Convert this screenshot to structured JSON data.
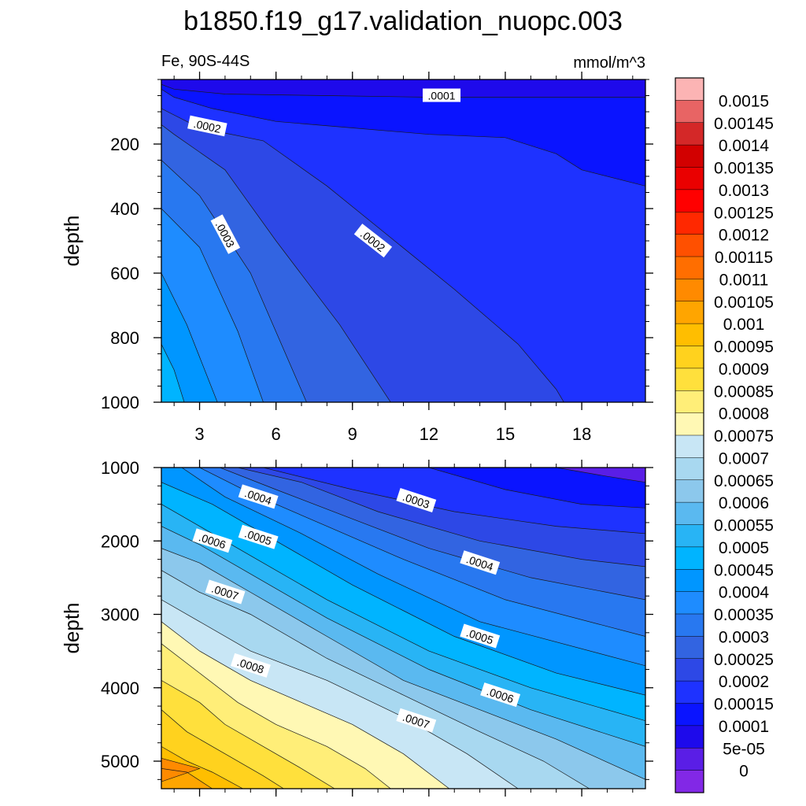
{
  "chart_data": [
    {
      "type": "heatmap",
      "title": "b1850.f19_g17.validation_nuopc.003",
      "panel": "upper",
      "left_string": "Fe, 90S-44S",
      "right_string": "mmol/m^3",
      "xlabel": "",
      "ylabel": "depth",
      "x_ticks": [
        "3",
        "6",
        "9",
        "12",
        "15",
        "18"
      ],
      "y_ticks": [
        "200",
        "400",
        "600",
        "800",
        "1000"
      ],
      "xlim": [
        1.5,
        20.5
      ],
      "ylim": [
        1000,
        0
      ],
      "contour_labels": [
        {
          "text": ".0001",
          "x": 12.5,
          "y": 50
        },
        {
          "text": ".0002",
          "x": 3.3,
          "y": 145
        },
        {
          "text": ".0003",
          "x": 4.0,
          "y": 480
        },
        {
          "text": ".0002",
          "x": 9.8,
          "y": 500
        }
      ],
      "contours": [
        {
          "level": 0.0001,
          "x": [
            1.5,
            2.0,
            4.0,
            8.0,
            12.0,
            16.0,
            20.5
          ],
          "y": [
            15,
            30,
            45,
            50,
            55,
            55,
            55
          ]
        },
        {
          "level": 0.00015,
          "x": [
            1.5,
            2.0,
            3.5,
            6.0,
            9.0,
            12.0,
            15.0,
            17.0,
            18.0,
            20.5
          ],
          "y": [
            30,
            55,
            90,
            130,
            150,
            170,
            180,
            230,
            280,
            330
          ]
        },
        {
          "level": 0.0002,
          "x": [
            1.5,
            3.0,
            5.5,
            8.0,
            10.5,
            13.0,
            15.5,
            17.0,
            17.3
          ],
          "y": [
            90,
            150,
            190,
            330,
            490,
            650,
            820,
            960,
            1000
          ]
        },
        {
          "level": 0.00025,
          "x": [
            1.5,
            2.0,
            4.0,
            6.0,
            8.5,
            10.5
          ],
          "y": [
            140,
            170,
            280,
            500,
            760,
            1000
          ]
        },
        {
          "level": 0.0003,
          "x": [
            1.5,
            3.0,
            5.0,
            7.2
          ],
          "y": [
            250,
            360,
            600,
            1000
          ]
        },
        {
          "level": 0.00035,
          "x": [
            1.5,
            3.0,
            4.5,
            5.5
          ],
          "y": [
            400,
            520,
            780,
            1000
          ]
        },
        {
          "level": 0.0004,
          "x": [
            1.5,
            2.5,
            3.7
          ],
          "y": [
            600,
            760,
            1000
          ]
        },
        {
          "level": 0.00045,
          "x": [
            1.5,
            2.0,
            2.4
          ],
          "y": [
            820,
            900,
            1000
          ]
        }
      ]
    },
    {
      "type": "heatmap",
      "panel": "lower",
      "xlabel": "",
      "ylabel": "depth",
      "y_ticks": [
        "1000",
        "2000",
        "3000",
        "4000",
        "5000"
      ],
      "xlim": [
        1.5,
        20.5
      ],
      "ylim": [
        5375,
        1000
      ],
      "contour_labels": [
        {
          "text": ".0004",
          "x": 5.3,
          "y": 1400
        },
        {
          "text": ".0003",
          "x": 11.5,
          "y": 1450
        },
        {
          "text": ".0006",
          "x": 3.5,
          "y": 2000
        },
        {
          "text": ".0005",
          "x": 5.3,
          "y": 1950
        },
        {
          "text": ".0004",
          "x": 14.0,
          "y": 2300
        },
        {
          "text": ".0007",
          "x": 4.0,
          "y": 2700
        },
        {
          "text": ".0005",
          "x": 14.0,
          "y": 3300
        },
        {
          "text": ".0008",
          "x": 5.0,
          "y": 3700
        },
        {
          "text": ".0006",
          "x": 14.8,
          "y": 4100
        },
        {
          "text": ".0007",
          "x": 11.5,
          "y": 4450
        }
      ],
      "contours": [
        {
          "level": 0.0001,
          "x": [
            17.0,
            19.0,
            20.5
          ],
          "y": [
            1000,
            1120,
            1200
          ]
        },
        {
          "level": 0.00015,
          "x": [
            12.0,
            15.0,
            18.0,
            20.5
          ],
          "y": [
            1000,
            1300,
            1500,
            1550
          ]
        },
        {
          "level": 0.0002,
          "x": [
            5.5,
            9.0,
            13.0,
            17.0,
            20.5
          ],
          "y": [
            1000,
            1300,
            1600,
            1800,
            1900
          ]
        },
        {
          "level": 0.00025,
          "x": [
            4.5,
            7.0,
            10.0,
            14.0,
            18.0,
            20.5
          ],
          "y": [
            1000,
            1200,
            1600,
            2000,
            2250,
            2350
          ]
        },
        {
          "level": 0.0003,
          "x": [
            3.8,
            6.0,
            9.0,
            12.0,
            16.0,
            20.5
          ],
          "y": [
            1000,
            1300,
            1700,
            2100,
            2500,
            2800
          ]
        },
        {
          "level": 0.00035,
          "x": [
            3.0,
            5.0,
            8.0,
            11.0,
            15.0,
            20.5
          ],
          "y": [
            1000,
            1350,
            1800,
            2250,
            2800,
            3300
          ]
        },
        {
          "level": 0.0004,
          "x": [
            2.3,
            4.0,
            7.0,
            10.0,
            14.0,
            20.5
          ],
          "y": [
            1000,
            1400,
            1900,
            2450,
            3100,
            3700
          ]
        },
        {
          "level": 0.00045,
          "x": [
            1.5,
            3.5,
            6.0,
            9.0,
            13.0,
            17.0,
            20.5
          ],
          "y": [
            1200,
            1500,
            2000,
            2600,
            3300,
            3800,
            4100
          ]
        },
        {
          "level": 0.0005,
          "x": [
            1.5,
            3.0,
            5.0,
            8.0,
            12.0,
            16.0,
            20.5
          ],
          "y": [
            1500,
            1800,
            2200,
            2800,
            3500,
            4000,
            4450
          ]
        },
        {
          "level": 0.00055,
          "x": [
            1.5,
            3.0,
            5.0,
            8.0,
            12.0,
            16.0,
            20.5
          ],
          "y": [
            1800,
            2050,
            2450,
            3050,
            3750,
            4300,
            4800
          ]
        },
        {
          "level": 0.0006,
          "x": [
            1.5,
            3.0,
            5.0,
            8.0,
            11.0,
            14.0,
            17.0,
            20.5
          ],
          "y": [
            2100,
            2300,
            2700,
            3300,
            3900,
            4300,
            4700,
            5250
          ]
        },
        {
          "level": 0.00065,
          "x": [
            1.5,
            3.0,
            5.0,
            8.0,
            11.0,
            14.0,
            16.5,
            18.3
          ],
          "y": [
            2400,
            2700,
            3000,
            3600,
            4100,
            4600,
            5000,
            5375
          ]
        },
        {
          "level": 0.0007,
          "x": [
            1.5,
            3.0,
            5.0,
            8.0,
            11.0,
            13.5,
            15.5
          ],
          "y": [
            2800,
            3100,
            3500,
            3900,
            4400,
            4900,
            5375
          ]
        },
        {
          "level": 0.00075,
          "x": [
            1.5,
            3.0,
            5.0,
            7.0,
            9.0,
            11.0,
            12.8
          ],
          "y": [
            3100,
            3500,
            3900,
            4200,
            4500,
            4900,
            5375
          ]
        },
        {
          "level": 0.0008,
          "x": [
            1.5,
            3.0,
            4.5,
            6.0,
            8.0,
            9.5,
            10.5
          ],
          "y": [
            3400,
            3800,
            4200,
            4500,
            4800,
            5100,
            5375
          ]
        },
        {
          "level": 0.00085,
          "x": [
            1.5,
            3.0,
            4.0,
            5.5,
            7.0,
            8.3
          ],
          "y": [
            3900,
            4200,
            4500,
            4800,
            5100,
            5375
          ]
        },
        {
          "level": 0.0009,
          "x": [
            1.5,
            2.5,
            4.0,
            5.5,
            6.3
          ],
          "y": [
            4300,
            4600,
            4900,
            5200,
            5375
          ]
        },
        {
          "level": 0.00095,
          "x": [
            1.5,
            2.5,
            3.5,
            4.7
          ],
          "y": [
            4800,
            5000,
            5150,
            5375
          ]
        },
        {
          "level": 0.001,
          "x": [
            1.5,
            2.5,
            3.5
          ],
          "y": [
            5100,
            5150,
            5375
          ]
        },
        {
          "level": 0.00105,
          "x": [
            1.5,
            3.0,
            1.5
          ],
          "y": [
            4960,
            5100,
            5280
          ]
        }
      ]
    }
  ],
  "colorbar": {
    "labels": [
      "0.0015",
      "0.00145",
      "0.0014",
      "0.00135",
      "0.0013",
      "0.00125",
      "0.0012",
      "0.00115",
      "0.0011",
      "0.00105",
      "0.001",
      "0.00095",
      "0.0009",
      "0.00085",
      "0.0008",
      "0.00075",
      "0.0007",
      "0.00065",
      "0.0006",
      "0.00055",
      "0.0005",
      "0.00045",
      "0.0004",
      "0.00035",
      "0.0003",
      "0.00025",
      "0.0002",
      "0.00015",
      "0.0001",
      "5e-05",
      "0"
    ],
    "colors": [
      "#fcb4b4",
      "#e86464",
      "#d42828",
      "#d20000",
      "#ea0000",
      "#ff0000",
      "#ff2800",
      "#ff5000",
      "#ff6e00",
      "#ff8a00",
      "#ffa500",
      "#ffbe00",
      "#ffd21e",
      "#ffe03c",
      "#ffee78",
      "#fff8b4",
      "#c8e6f5",
      "#a8d8f0",
      "#8cc8ec",
      "#5ab9f0",
      "#28b4f5",
      "#00b4ff",
      "#0096ff",
      "#1e8cff",
      "#2878f0",
      "#3264e1",
      "#2d48e6",
      "#1e32ff",
      "#0a14ff",
      "#1e0aeb",
      "#5a1ee6",
      "#8228e6"
    ]
  }
}
